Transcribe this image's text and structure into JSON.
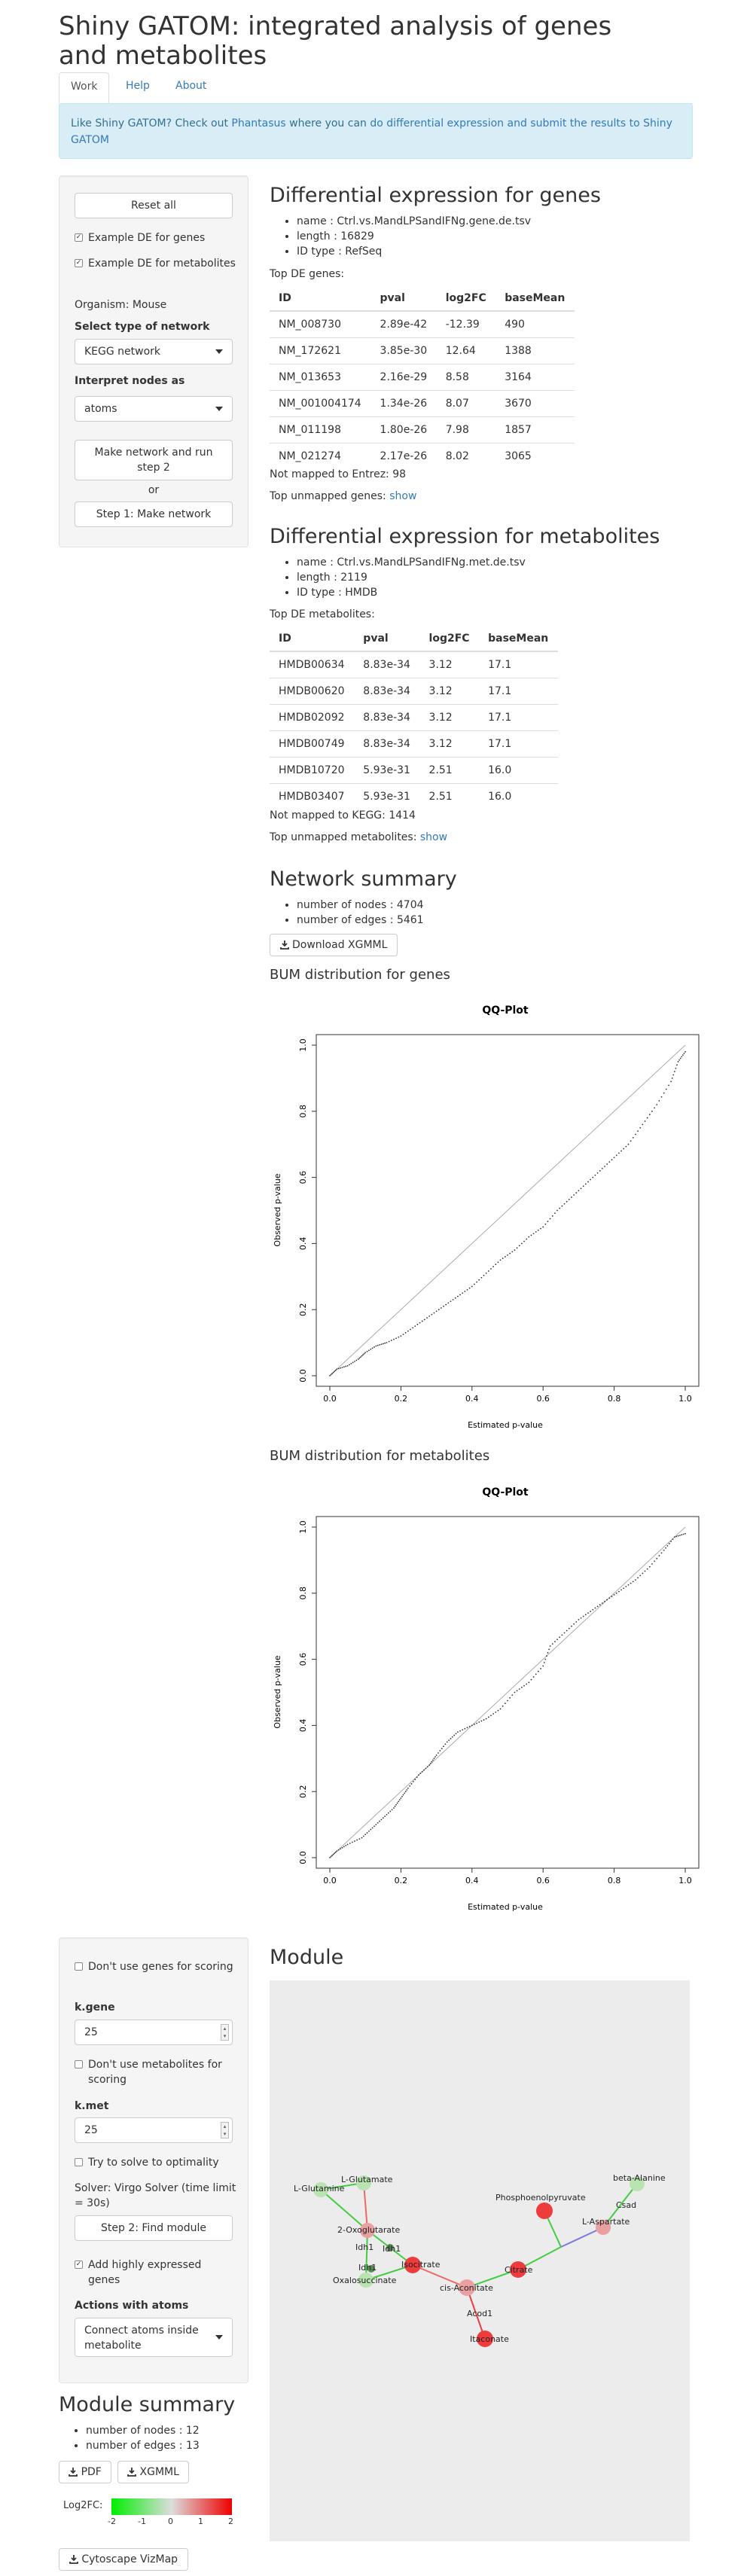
{
  "app": {
    "title": "Shiny GATOM: integrated analysis of genes and metabolites",
    "tabs": [
      {
        "label": "Work"
      },
      {
        "label": "Help"
      },
      {
        "label": "About"
      }
    ],
    "notice": {
      "prefix": "Like Shiny GATOM? Check out ",
      "link1": "Phantasus",
      "middle": " where you can ",
      "link2": "do differential expression and submit the results to Shiny GATOM"
    }
  },
  "sidebar1": {
    "reset_label": "Reset all",
    "example_genes": {
      "label": "Example DE for genes",
      "checked": true
    },
    "example_mets": {
      "label": "Example DE for metabolites",
      "checked": true
    },
    "organism": "Organism: Mouse",
    "network_type_label": "Select type of network",
    "network_type_value": "KEGG network",
    "interpret_label": "Interpret nodes as",
    "interpret_value": "atoms",
    "make_network_run_label": "Make network and run step 2",
    "or_label": "or",
    "make_network_label": "Step 1: Make network"
  },
  "genes": {
    "heading": "Differential expression for genes",
    "info": [
      "name : Ctrl.vs.MandLPSandIFNg.gene.de.tsv",
      "length : 16829",
      "ID type : RefSeq"
    ],
    "top_label": "Top DE genes:",
    "columns": [
      "ID",
      "pval",
      "log2FC",
      "baseMean"
    ],
    "rows": [
      [
        "NM_008730",
        "2.89e-42",
        "-12.39",
        "490"
      ],
      [
        "NM_172621",
        "3.85e-30",
        "12.64",
        "1388"
      ],
      [
        "NM_013653",
        "2.16e-29",
        "8.58",
        "3164"
      ],
      [
        "NM_001004174",
        "1.34e-26",
        "8.07",
        "3670"
      ],
      [
        "NM_011198",
        "1.80e-26",
        "7.98",
        "1857"
      ],
      [
        "NM_021274",
        "2.17e-26",
        "8.02",
        "3065"
      ]
    ],
    "not_mapped": "Not mapped to Entrez: 98",
    "unmapped_label": "Top unmapped genes: ",
    "show_label": "show"
  },
  "mets": {
    "heading": "Differential expression for metabolites",
    "info": [
      "name : Ctrl.vs.MandLPSandIFNg.met.de.tsv",
      "length : 2119",
      "ID type : HMDB"
    ],
    "top_label": "Top DE metabolites:",
    "columns": [
      "ID",
      "pval",
      "log2FC",
      "baseMean"
    ],
    "rows": [
      [
        "HMDB00634",
        "8.83e-34",
        "3.12",
        "17.1"
      ],
      [
        "HMDB00620",
        "8.83e-34",
        "3.12",
        "17.1"
      ],
      [
        "HMDB02092",
        "8.83e-34",
        "3.12",
        "17.1"
      ],
      [
        "HMDB00749",
        "8.83e-34",
        "3.12",
        "17.1"
      ],
      [
        "HMDB10720",
        "5.93e-31",
        "2.51",
        "16.0"
      ],
      [
        "HMDB03407",
        "5.93e-31",
        "2.51",
        "16.0"
      ]
    ],
    "not_mapped": "Not mapped to KEGG: 1414",
    "unmapped_label": "Top unmapped metabolites: ",
    "show_label": "show"
  },
  "network_summary": {
    "heading": "Network summary",
    "items": [
      "number of nodes : 4704",
      "number of edges : 5461"
    ],
    "download_label": "Download XGMML"
  },
  "bum_genes": {
    "heading": "BUM distribution for genes"
  },
  "bum_mets": {
    "heading": "BUM distribution for metabolites"
  },
  "chart_data": [
    {
      "type": "scatter",
      "title": "QQ-Plot",
      "xlabel": "Estimated p-value",
      "ylabel": "Observed p-value",
      "xlim": [
        0,
        1
      ],
      "ylim": [
        0,
        1
      ],
      "x_ticks": [
        "0.0",
        "0.2",
        "0.4",
        "0.6",
        "0.8",
        "1.0"
      ],
      "y_ticks": [
        "0.0",
        "0.2",
        "0.4",
        "0.6",
        "0.8",
        "1.0"
      ],
      "reference_line": [
        [
          0,
          0
        ],
        [
          1,
          1
        ]
      ],
      "points": [
        [
          0.0,
          0.0
        ],
        [
          0.02,
          0.02
        ],
        [
          0.05,
          0.03
        ],
        [
          0.08,
          0.05
        ],
        [
          0.1,
          0.07
        ],
        [
          0.13,
          0.09
        ],
        [
          0.16,
          0.1
        ],
        [
          0.2,
          0.12
        ],
        [
          0.24,
          0.15
        ],
        [
          0.28,
          0.18
        ],
        [
          0.32,
          0.21
        ],
        [
          0.36,
          0.24
        ],
        [
          0.4,
          0.27
        ],
        [
          0.44,
          0.31
        ],
        [
          0.48,
          0.35
        ],
        [
          0.52,
          0.38
        ],
        [
          0.56,
          0.42
        ],
        [
          0.6,
          0.45
        ],
        [
          0.64,
          0.5
        ],
        [
          0.68,
          0.54
        ],
        [
          0.72,
          0.58
        ],
        [
          0.76,
          0.62
        ],
        [
          0.8,
          0.66
        ],
        [
          0.84,
          0.7
        ],
        [
          0.88,
          0.76
        ],
        [
          0.92,
          0.82
        ],
        [
          0.96,
          0.89
        ],
        [
          0.98,
          0.95
        ],
        [
          1.0,
          0.98
        ]
      ]
    },
    {
      "type": "scatter",
      "title": "QQ-Plot",
      "xlabel": "Estimated p-value",
      "ylabel": "Observed p-value",
      "xlim": [
        0,
        1
      ],
      "ylim": [
        0,
        1
      ],
      "x_ticks": [
        "0.0",
        "0.2",
        "0.4",
        "0.6",
        "0.8",
        "1.0"
      ],
      "y_ticks": [
        "0.0",
        "0.2",
        "0.4",
        "0.6",
        "0.8",
        "1.0"
      ],
      "reference_line": [
        [
          0,
          0
        ],
        [
          1,
          1
        ]
      ],
      "points": [
        [
          0.0,
          0.0
        ],
        [
          0.02,
          0.02
        ],
        [
          0.05,
          0.04
        ],
        [
          0.09,
          0.06
        ],
        [
          0.12,
          0.09
        ],
        [
          0.15,
          0.12
        ],
        [
          0.18,
          0.15
        ],
        [
          0.2,
          0.18
        ],
        [
          0.22,
          0.21
        ],
        [
          0.25,
          0.25
        ],
        [
          0.28,
          0.28
        ],
        [
          0.3,
          0.31
        ],
        [
          0.33,
          0.35
        ],
        [
          0.36,
          0.38
        ],
        [
          0.4,
          0.4
        ],
        [
          0.44,
          0.42
        ],
        [
          0.48,
          0.45
        ],
        [
          0.52,
          0.5
        ],
        [
          0.56,
          0.53
        ],
        [
          0.6,
          0.58
        ],
        [
          0.62,
          0.64
        ],
        [
          0.66,
          0.68
        ],
        [
          0.7,
          0.72
        ],
        [
          0.74,
          0.75
        ],
        [
          0.78,
          0.78
        ],
        [
          0.82,
          0.81
        ],
        [
          0.86,
          0.84
        ],
        [
          0.9,
          0.88
        ],
        [
          0.94,
          0.93
        ],
        [
          0.97,
          0.97
        ],
        [
          1.0,
          0.98
        ]
      ]
    }
  ],
  "sidebar2": {
    "dont_use_genes": {
      "label": "Don't use genes for scoring",
      "checked": false
    },
    "kgene_label": "k.gene",
    "kgene_value": "25",
    "dont_use_mets": {
      "label": "Don't use metabolites for scoring",
      "checked": false
    },
    "kmet_label": "k.met",
    "kmet_value": "25",
    "optimality": {
      "label": "Try to solve to optimality",
      "checked": false
    },
    "solver": "Solver: Virgo Solver (time limit = 30s)",
    "find_module_label": "Step 2: Find module",
    "add_expressed": {
      "label": "Add highly expressed genes",
      "checked": true
    },
    "actions_label": "Actions with atoms",
    "actions_value": "Connect atoms inside metabolite"
  },
  "module": {
    "heading": "Module",
    "nodes": [
      {
        "label": "L-Glutamate",
        "color": "#b9e3b0"
      },
      {
        "label": "L-Glutamine",
        "color": "#b9e3b0"
      },
      {
        "label": "2-Oxoglutarate",
        "color": "#e9a0a0"
      },
      {
        "label": "Idh1",
        "color": "#5a8a5a"
      },
      {
        "label": "Idh1",
        "color": "#5a8a5a"
      },
      {
        "label": "Oxalosuccinate",
        "color": "#b9e3b0"
      },
      {
        "label": "Isocitrate",
        "color": "#ee3b3b"
      },
      {
        "label": "cis-Aconitate",
        "color": "#e9a0a0"
      },
      {
        "label": "Citrate",
        "color": "#ee3b3b"
      },
      {
        "label": "Itaconate",
        "color": "#ee3b3b"
      },
      {
        "label": "Phosphoenolpyruvate",
        "color": "#ee3b3b"
      },
      {
        "label": "L-Aspartate",
        "color": "#e9a0a0"
      },
      {
        "label": "beta-Alanine",
        "color": "#b9e3b0"
      }
    ],
    "edges": [
      {
        "label": "Idh1"
      },
      {
        "label": "Acod1"
      },
      {
        "label": "Csad"
      }
    ]
  },
  "module_summary": {
    "heading": "Module summary",
    "items": [
      "number of nodes : 12",
      "number of edges : 13"
    ],
    "pdf_label": "PDF",
    "xgmml_label": "XGMML",
    "legend_label": "Log2FC:",
    "legend_ticks": [
      "-2",
      "-1",
      "0",
      "1",
      "2"
    ],
    "legend_colors": [
      "#00ee00",
      "#dddddd",
      "#ee0000"
    ],
    "vizmap_label": "Cytoscape VizMap"
  }
}
